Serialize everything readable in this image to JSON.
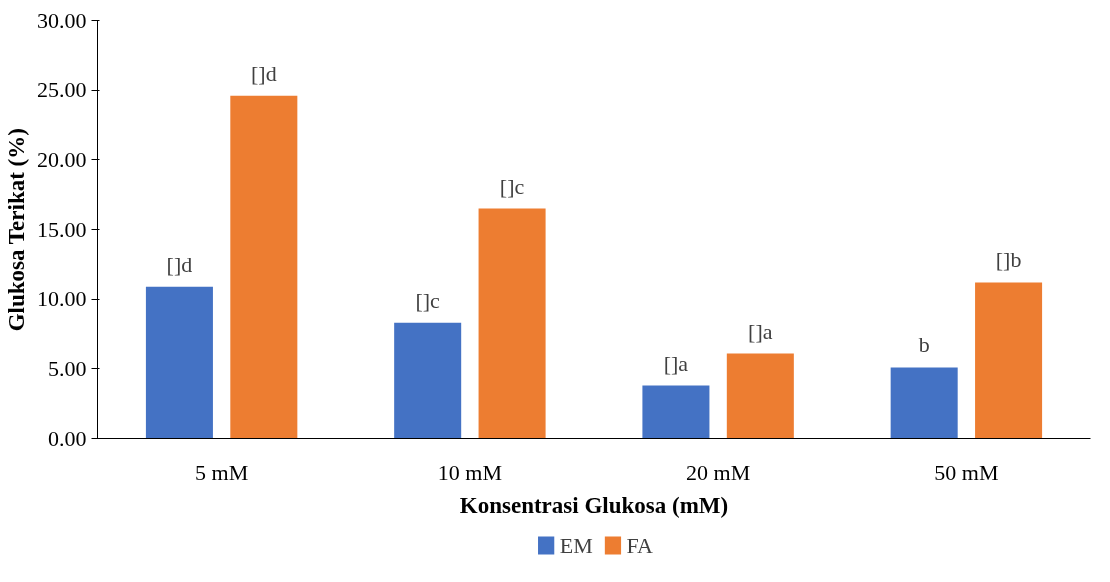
{
  "chart_data": {
    "type": "bar",
    "xlabel": "Konsentrasi Glukosa (mM)",
    "ylabel": "Glukosa Terikat (%)",
    "categories": [
      "5 mM",
      "10 mM",
      "20 mM",
      "50 mM"
    ],
    "series": [
      {
        "name": "EM",
        "color": "#4472c4",
        "values": [
          10.9,
          8.3,
          3.8,
          5.1
        ],
        "value_labels": [
          "[]d",
          "[]c",
          "[]a",
          "b"
        ]
      },
      {
        "name": "FA",
        "color": "#ed7d31",
        "values": [
          24.6,
          16.5,
          6.1,
          11.2
        ],
        "value_labels": [
          "[]d",
          "[]c",
          "[]a",
          "[]b"
        ]
      }
    ],
    "ylim": [
      0,
      30
    ],
    "yticks": [
      {
        "value": 0,
        "label": "0.00"
      },
      {
        "value": 5,
        "label": "5.00"
      },
      {
        "value": 10,
        "label": "10.00"
      },
      {
        "value": 15,
        "label": "15.00"
      },
      {
        "value": 20,
        "label": "20.00"
      },
      {
        "value": 25,
        "label": "25.00"
      },
      {
        "value": 30,
        "label": "30.00"
      }
    ],
    "legend": "bottom"
  }
}
